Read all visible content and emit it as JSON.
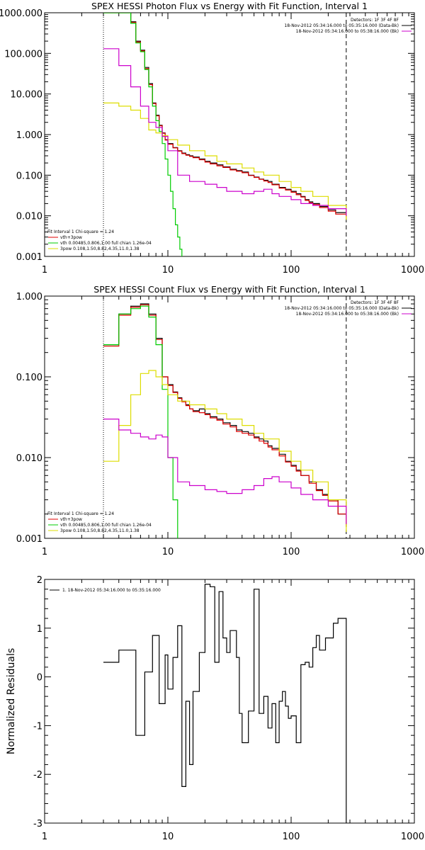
{
  "chart_data": [
    {
      "type": "line",
      "title": "SPEX HESSI Photon Flux vs Energy with Fit Function, Interval 1",
      "xlabel": "",
      "ylabel": "",
      "xscale": "log",
      "yscale": "log",
      "xlim": [
        1,
        1000
      ],
      "ylim": [
        0.001,
        1000
      ],
      "x_ticks": [
        "1",
        "10",
        "100",
        "1000"
      ],
      "y_ticks": [
        "0.001",
        "0.010",
        "0.100",
        "1.000",
        "10.000",
        "100.000",
        "1000.000"
      ],
      "legend_top": [
        "Detectors: 1F 3F 4F 8F",
        "18-Nov-2012 05:34:16.000 to 05:35:16.000 (Data-Bk)",
        "18-Nov-2012 05:34:16.000 to 05:38:16.000 (Bk)"
      ],
      "legend_bottom": [
        "Fit Interval 1   Chi-square = 1.24",
        "vth+3pow",
        "vth 0.00485,0.806,1.00  full chian 1.26e-04",
        "3pow 0.108,1.50,8.82,4.35,11.0,1.38"
      ],
      "vlines": {
        "dotted": 3,
        "dashed": 280
      },
      "series": [
        {
          "name": "Data-Bk",
          "color": "#000000",
          "x": [
            3,
            4,
            5,
            5.5,
            6,
            6.5,
            7,
            7.5,
            8,
            8.5,
            9,
            9.5,
            10,
            11,
            12,
            13,
            14,
            15,
            16,
            18,
            20,
            22,
            25,
            28,
            32,
            36,
            40,
            45,
            50,
            55,
            60,
            65,
            70,
            80,
            90,
            100,
            110,
            120,
            130,
            140,
            150,
            170,
            200,
            230,
            280
          ],
          "y": [
            1000,
            1000,
            600,
            200,
            120,
            45,
            18,
            6,
            3,
            1.7,
            1.1,
            0.75,
            0.6,
            0.48,
            0.4,
            0.35,
            0.32,
            0.3,
            0.28,
            0.25,
            0.22,
            0.2,
            0.18,
            0.16,
            0.14,
            0.13,
            0.12,
            0.1,
            0.09,
            0.08,
            0.075,
            0.07,
            0.06,
            0.05,
            0.045,
            0.04,
            0.035,
            0.03,
            0.025,
            0.022,
            0.02,
            0.017,
            0.014,
            0.012,
            0.01
          ]
        },
        {
          "name": "vth+3pow",
          "color": "#e00000",
          "x": [
            3,
            4,
            5,
            5.5,
            6,
            6.5,
            7,
            7.5,
            8,
            8.5,
            9,
            9.5,
            10,
            11,
            12,
            13,
            14,
            15,
            16,
            18,
            20,
            22,
            25,
            28,
            32,
            36,
            40,
            45,
            50,
            55,
            60,
            65,
            70,
            80,
            90,
            100,
            110,
            120,
            130,
            140,
            150,
            170,
            200,
            230,
            280
          ],
          "y": [
            1000,
            1000,
            580,
            190,
            115,
            42,
            17,
            5.8,
            2.9,
            1.65,
            1.08,
            0.73,
            0.58,
            0.47,
            0.39,
            0.34,
            0.31,
            0.29,
            0.27,
            0.24,
            0.21,
            0.19,
            0.17,
            0.155,
            0.135,
            0.125,
            0.115,
            0.098,
            0.088,
            0.079,
            0.072,
            0.066,
            0.058,
            0.048,
            0.043,
            0.038,
            0.033,
            0.029,
            0.024,
            0.021,
            0.019,
            0.016,
            0.013,
            0.011,
            0.009
          ]
        },
        {
          "name": "vth",
          "color": "#00cc00",
          "x": [
            3,
            4,
            5,
            5.5,
            6,
            6.5,
            7,
            7.5,
            8,
            8.5,
            9,
            9.5,
            10,
            10.5,
            11,
            11.5,
            12,
            12.5,
            13
          ],
          "y": [
            1000,
            1000,
            550,
            180,
            110,
            40,
            15,
            5,
            2.2,
            1.2,
            0.6,
            0.25,
            0.1,
            0.04,
            0.015,
            0.006,
            0.003,
            0.0015,
            0.001
          ]
        },
        {
          "name": "3pow",
          "color": "#dddd00",
          "x": [
            3,
            4,
            5,
            6,
            7,
            8,
            9,
            10,
            12,
            15,
            20,
            25,
            30,
            40,
            50,
            60,
            80,
            100,
            120,
            150,
            200,
            280
          ],
          "y": [
            6,
            5,
            4,
            2.5,
            1.3,
            1.1,
            0.95,
            0.75,
            0.55,
            0.4,
            0.3,
            0.22,
            0.19,
            0.15,
            0.12,
            0.1,
            0.07,
            0.05,
            0.04,
            0.03,
            0.018,
            0.008
          ]
        },
        {
          "name": "Bk",
          "color": "#cc00cc",
          "x": [
            3,
            4,
            5,
            6,
            7,
            8,
            9,
            10,
            12,
            15,
            20,
            25,
            30,
            40,
            50,
            60,
            70,
            80,
            100,
            120,
            150,
            200,
            280
          ],
          "y": [
            130,
            50,
            15,
            5,
            2,
            1.5,
            0.9,
            0.4,
            0.1,
            0.07,
            0.06,
            0.05,
            0.04,
            0.035,
            0.04,
            0.045,
            0.035,
            0.03,
            0.025,
            0.02,
            0.018,
            0.015,
            0.01
          ]
        }
      ]
    },
    {
      "type": "line",
      "title": "SPEX HESSI Count Flux vs Energy with Fit Function, Interval 1",
      "xlabel": "",
      "ylabel": "",
      "xscale": "log",
      "yscale": "log",
      "xlim": [
        1,
        1000
      ],
      "ylim": [
        0.001,
        1
      ],
      "x_ticks": [
        "1",
        "10",
        "100",
        "1000"
      ],
      "y_ticks": [
        "0.001",
        "0.010",
        "0.100",
        "1.000"
      ],
      "legend_top": [
        "Detectors: 1F 3F 4F 8F",
        "18-Nov-2012 05:34:16.000 to 05:35:16.000 (Data-Bk)",
        "18-Nov-2012 05:34:16.000 to 05:38:16.000 (Bk)"
      ],
      "legend_bottom": [
        "Fit Interval 1   Chi-square = 1.24",
        "vth+3pow",
        "vth 0.00485,0.806,1.00  full chian 1.26e-04",
        "3pow 0.108,1.50,8.82,4.35,11.0,1.38"
      ],
      "vlines": {
        "dotted": 3,
        "dashed": 280
      },
      "series": [
        {
          "name": "Data-Bk",
          "color": "#000000",
          "x": [
            3,
            4,
            5,
            6,
            7,
            8,
            9,
            10,
            11,
            12,
            13,
            14,
            15,
            16,
            18,
            20,
            22,
            25,
            28,
            32,
            36,
            40,
            45,
            50,
            55,
            60,
            65,
            70,
            80,
            90,
            100,
            110,
            120,
            140,
            160,
            180,
            200,
            240,
            280
          ],
          "y": [
            0.25,
            0.6,
            0.75,
            0.8,
            0.6,
            0.3,
            0.1,
            0.08,
            0.065,
            0.055,
            0.05,
            0.045,
            0.04,
            0.038,
            0.04,
            0.035,
            0.032,
            0.03,
            0.027,
            0.025,
            0.022,
            0.021,
            0.02,
            0.018,
            0.017,
            0.016,
            0.014,
            0.013,
            0.011,
            0.009,
            0.008,
            0.007,
            0.006,
            0.005,
            0.004,
            0.0035,
            0.003,
            0.002,
            0.0015
          ]
        },
        {
          "name": "vth+3pow",
          "color": "#e00000",
          "x": [
            3,
            4,
            5,
            6,
            7,
            8,
            9,
            10,
            11,
            12,
            13,
            14,
            15,
            16,
            18,
            20,
            22,
            25,
            28,
            32,
            36,
            40,
            45,
            50,
            55,
            60,
            65,
            70,
            80,
            90,
            100,
            110,
            120,
            140,
            160,
            180,
            200,
            240,
            280
          ],
          "y": [
            0.24,
            0.58,
            0.73,
            0.78,
            0.58,
            0.29,
            0.1,
            0.078,
            0.064,
            0.054,
            0.049,
            0.044,
            0.04,
            0.037,
            0.036,
            0.034,
            0.031,
            0.029,
            0.026,
            0.024,
            0.021,
            0.02,
            0.019,
            0.0175,
            0.016,
            0.015,
            0.0135,
            0.0125,
            0.0105,
            0.0088,
            0.0078,
            0.0068,
            0.006,
            0.0048,
            0.0039,
            0.0034,
            0.0029,
            0.002,
            0.0014
          ]
        },
        {
          "name": "vth",
          "color": "#00cc00",
          "x": [
            3,
            4,
            5,
            6,
            7,
            8,
            9,
            10,
            11,
            12
          ],
          "y": [
            0.25,
            0.6,
            0.7,
            0.75,
            0.55,
            0.25,
            0.07,
            0.01,
            0.003,
            0.001
          ]
        },
        {
          "name": "3pow",
          "color": "#dddd00",
          "x": [
            3,
            4,
            5,
            6,
            7,
            8,
            9,
            10,
            12,
            15,
            20,
            25,
            30,
            40,
            50,
            60,
            80,
            100,
            120,
            150,
            200,
            280
          ],
          "y": [
            0.009,
            0.025,
            0.06,
            0.11,
            0.12,
            0.1,
            0.08,
            0.06,
            0.05,
            0.045,
            0.04,
            0.035,
            0.03,
            0.025,
            0.02,
            0.017,
            0.012,
            0.009,
            0.007,
            0.005,
            0.003,
            0.0012
          ]
        },
        {
          "name": "Bk",
          "color": "#cc00cc",
          "x": [
            3,
            4,
            5,
            6,
            7,
            8,
            9,
            10,
            12,
            15,
            20,
            25,
            30,
            40,
            50,
            60,
            70,
            80,
            100,
            120,
            150,
            200,
            280
          ],
          "y": [
            0.03,
            0.022,
            0.02,
            0.018,
            0.017,
            0.019,
            0.018,
            0.01,
            0.005,
            0.0045,
            0.004,
            0.0038,
            0.0036,
            0.004,
            0.0045,
            0.0055,
            0.0058,
            0.005,
            0.0042,
            0.0035,
            0.003,
            0.0025,
            0.0015
          ]
        }
      ]
    },
    {
      "type": "line",
      "title": "",
      "xlabel": "",
      "ylabel": "Normalized Residuals",
      "xscale": "log",
      "yscale": "linear",
      "xlim": [
        1,
        1000
      ],
      "ylim": [
        -3,
        2
      ],
      "x_ticks": [
        "1",
        "10",
        "100",
        "1000"
      ],
      "y_ticks": [
        "-3",
        "-2",
        "-1",
        "0",
        "1",
        "2"
      ],
      "legend": "1. 18-Nov-2012 05:34:16.000 to 05:35:16.000",
      "series": [
        {
          "name": "residuals",
          "color": "#000000",
          "x": [
            3,
            3.5,
            4,
            5,
            5.5,
            6,
            6.5,
            7,
            7.5,
            8,
            8.5,
            9,
            9.5,
            10,
            11,
            12,
            13,
            14,
            15,
            16,
            17,
            18,
            20,
            22,
            24,
            26,
            28,
            30,
            32,
            34,
            36,
            38,
            40,
            45,
            50,
            55,
            60,
            65,
            70,
            75,
            80,
            85,
            90,
            95,
            100,
            110,
            120,
            130,
            140,
            150,
            160,
            170,
            180,
            190,
            200,
            220,
            240,
            260,
            280
          ],
          "y": [
            0.3,
            0.3,
            0.55,
            0.55,
            -1.2,
            -1.2,
            0.1,
            0.1,
            0.85,
            0.85,
            -0.55,
            -0.55,
            0.45,
            -0.25,
            0.4,
            1.05,
            -2.25,
            -0.5,
            -1.8,
            -0.3,
            -0.3,
            0.5,
            1.9,
            1.85,
            0.3,
            1.75,
            0.8,
            0.5,
            0.95,
            0.95,
            0.4,
            -0.75,
            -1.35,
            -0.7,
            1.8,
            -0.75,
            -0.4,
            -1.05,
            -0.55,
            -1.35,
            -0.5,
            -0.3,
            -0.6,
            -0.85,
            -0.8,
            -1.35,
            0.25,
            0.3,
            0.2,
            0.6,
            0.85,
            0.55,
            0.55,
            0.8,
            0.8,
            1.1,
            1.2,
            1.2,
            -3
          ]
        }
      ]
    }
  ]
}
